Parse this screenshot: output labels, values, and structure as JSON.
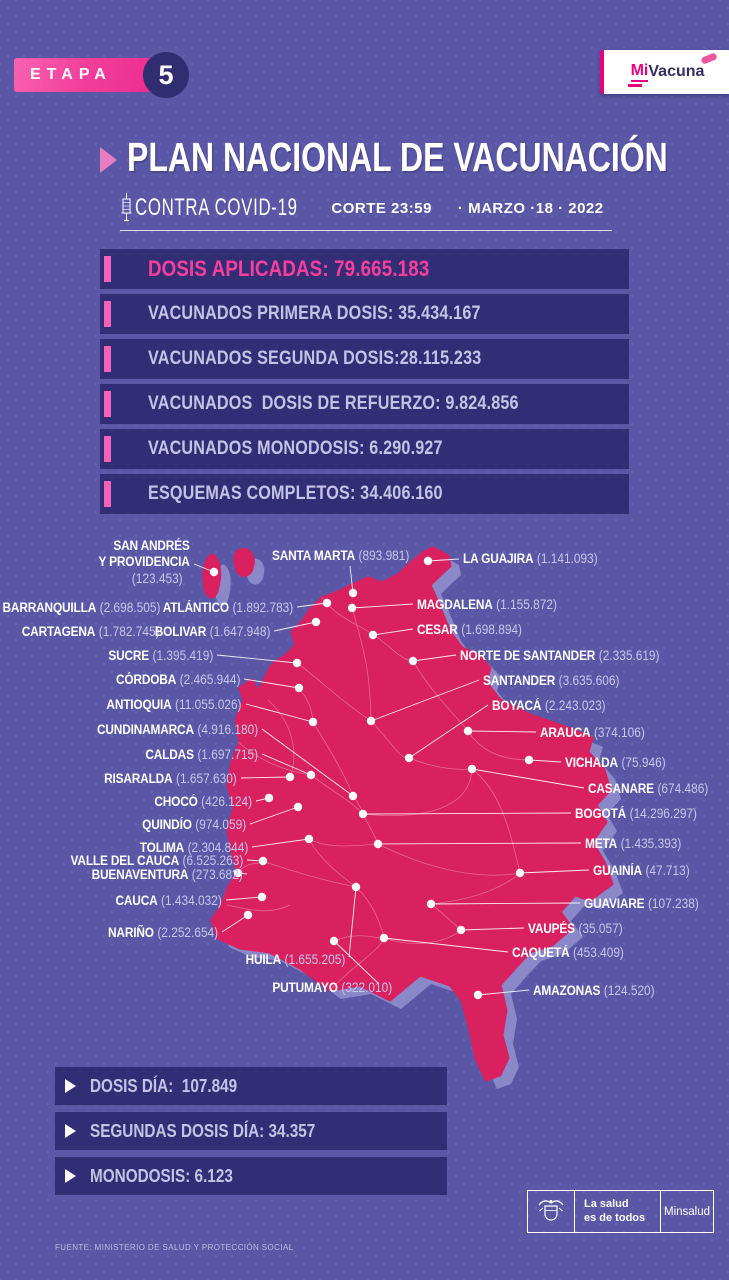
{
  "etapa": {
    "label": "ETAPA",
    "number": "5"
  },
  "logo": {
    "mi": "Mi",
    "vacuna": "Vacuna"
  },
  "header": {
    "title": "PLAN NACIONAL DE VACUNACIÓN",
    "subtitle": "CONTRA COVID-19",
    "corte": "CORTE 23:59",
    "fecha": "·  MARZO ·18  ·  2022"
  },
  "stats": [
    {
      "text": "DOSIS APLICADAS: 79.665.183"
    },
    {
      "text": "VACUNADOS PRIMERA DOSIS: 35.434.167"
    },
    {
      "text": "VACUNADOS SEGUNDA DOSIS:28.115.233"
    },
    {
      "text": "VACUNADOS  DOSIS DE REFUERZO: 9.824.856"
    },
    {
      "text": "VACUNADOS MONODOSIS: 6.290.927"
    },
    {
      "text": "ESQUEMAS COMPLETOS: 34.406.160"
    }
  ],
  "map": {
    "departments": [
      {
        "id": "san-andres-providencia",
        "name": "SAN ANDRÉS Y PROVIDENCIA",
        "value": "123.453"
      },
      {
        "id": "santa-marta",
        "name": "SANTA MARTA",
        "value": "893.981"
      },
      {
        "id": "la-guajira",
        "name": "LA GUAJIRA",
        "value": "1.141.093"
      },
      {
        "id": "barranquilla",
        "name": "BARRANQUILLA",
        "value": "2.698.505"
      },
      {
        "id": "atlantico",
        "name": "ATLÁNTICO",
        "value": "1.892.783"
      },
      {
        "id": "magdalena",
        "name": "MAGDALENA",
        "value": "1.155.872"
      },
      {
        "id": "cartagena",
        "name": "CARTAGENA",
        "value": "1.782.745"
      },
      {
        "id": "bolivar",
        "name": "BOLIVAR",
        "value": "1.647.948"
      },
      {
        "id": "cesar",
        "name": "CESAR",
        "value": "1.698.894"
      },
      {
        "id": "sucre",
        "name": "SUCRE",
        "value": "1.395.419"
      },
      {
        "id": "norte-de-santander",
        "name": "NORTE DE SANTANDER",
        "value": "2.335.619"
      },
      {
        "id": "cordoba",
        "name": "CÓRDOBA",
        "value": "2.465.944"
      },
      {
        "id": "santander",
        "name": "SANTANDER",
        "value": "3.635.606"
      },
      {
        "id": "antioquia",
        "name": "ANTIOQUIA",
        "value": "11.055.026"
      },
      {
        "id": "boyaca",
        "name": "BOYACÁ",
        "value": "2.243.023"
      },
      {
        "id": "cundinamarca",
        "name": "CUNDINAMARCA",
        "value": "4.916.180"
      },
      {
        "id": "arauca",
        "name": "ARAUCA",
        "value": "374.106"
      },
      {
        "id": "caldas",
        "name": "CALDAS",
        "value": "1.697.715"
      },
      {
        "id": "vichada",
        "name": "VICHADA",
        "value": "75.946"
      },
      {
        "id": "risaralda",
        "name": "RISARALDA",
        "value": "1.657.630"
      },
      {
        "id": "casanare",
        "name": "CASANARE",
        "value": "674.486"
      },
      {
        "id": "choco",
        "name": "CHOCÓ",
        "value": "426.124"
      },
      {
        "id": "bogota",
        "name": "BOGOTÁ",
        "value": "14.296.297"
      },
      {
        "id": "quindio",
        "name": "QUINDÍO",
        "value": "974.059"
      },
      {
        "id": "tolima",
        "name": "TOLIMA",
        "value": "2.304.844"
      },
      {
        "id": "meta",
        "name": "META",
        "value": "1.435.393"
      },
      {
        "id": "valle-del-cauca",
        "name": "VALLE DEL CAUCA",
        "value": "6.525.263"
      },
      {
        "id": "buenaventura",
        "name": "BUENAVENTURA",
        "value": "273.682"
      },
      {
        "id": "guainia",
        "name": "GUAINÍA",
        "value": "47.713"
      },
      {
        "id": "cauca",
        "name": "CAUCA",
        "value": "1.434.032"
      },
      {
        "id": "guaviare",
        "name": "GUAVIARE",
        "value": "107.238"
      },
      {
        "id": "narino",
        "name": "NARIÑO",
        "value": "2.252.654"
      },
      {
        "id": "vaupes",
        "name": "VAUPÉS",
        "value": "35.057"
      },
      {
        "id": "huila",
        "name": "HUILA",
        "value": "1.655.205"
      },
      {
        "id": "caqueta",
        "name": "CAQUETÁ",
        "value": "453.409"
      },
      {
        "id": "putumayo",
        "name": "PUTUMAYO",
        "value": "322.010"
      },
      {
        "id": "amazonas",
        "name": "AMAZONAS",
        "value": "124.520"
      }
    ]
  },
  "daily": [
    {
      "text": "DOSIS DÍA:  107.849"
    },
    {
      "text": "SEGUNDAS DOSIS DÍA: 34.357"
    },
    {
      "text": "MONODOSIS: 6.123"
    }
  ],
  "footer": {
    "slogan_line1": "La salud",
    "slogan_line2": "es de todos",
    "ministry": "Minsalud",
    "source": "FUENTE: MINISTERIO DE SALUD Y PROTECCIÓN SOCIAL"
  },
  "colors": {
    "background": "#5a57a6",
    "bar": "#322e75",
    "accent_pink": "#f462ba",
    "highlight_pink": "#ff3d9d",
    "map_fill": "#da2160",
    "map_shadow": "#8a88c8",
    "text_lavender": "#c5c3e5"
  }
}
